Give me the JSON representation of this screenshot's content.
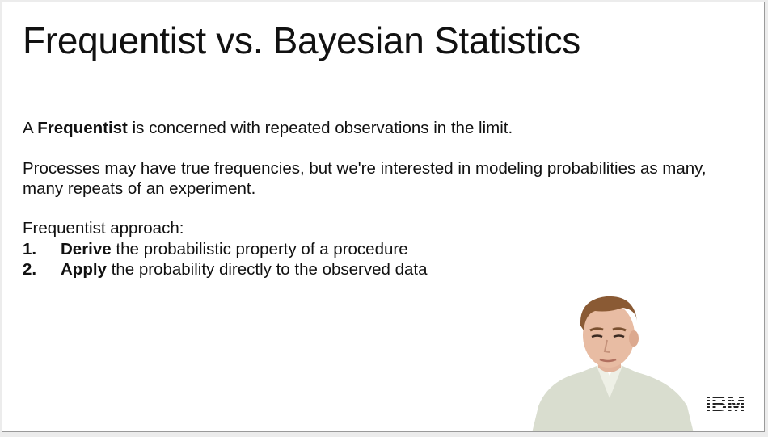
{
  "slide": {
    "title": "Frequentist vs. Bayesian Statistics",
    "p1": {
      "prefix": "A ",
      "bold": "Frequentist",
      "rest": " is concerned with repeated observations in the limit."
    },
    "p2": "Processes may have true frequencies, but we're interested in modeling probabilities as many, many repeats of an experiment.",
    "p3": "Frequentist approach:",
    "steps": [
      {
        "num": "1.",
        "bold": "Derive",
        "rest": " the probabilistic property of a procedure"
      },
      {
        "num": "2.",
        "bold": "Apply",
        "rest": " the probability directly to the observed data"
      }
    ]
  },
  "logo": {
    "name": "ibm-logo",
    "text": "IBM"
  },
  "presenter": {
    "icon": "presenter-video-icon"
  }
}
